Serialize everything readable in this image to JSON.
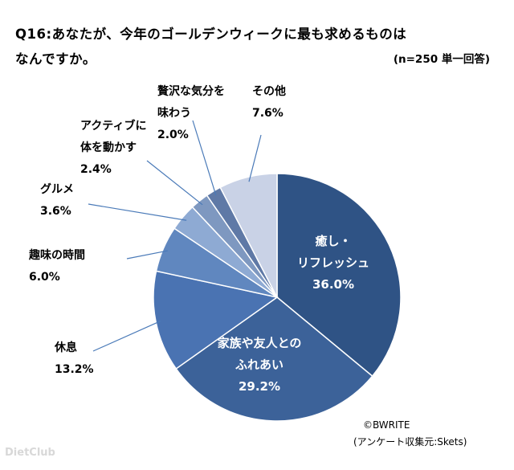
{
  "header": {
    "question_line1": "Q16:あなたが、今年のゴールデンウィークに最も求めるものは",
    "question_line2": "なんですか。",
    "sample": "(n=250 単一回答)"
  },
  "chart_data": {
    "type": "pie",
    "title": "Q16:あなたが、今年のゴールデンウィークに最も求めるものはなんですか。",
    "subtitle": "(n=250 単一回答)",
    "unit": "%",
    "slices": [
      {
        "label": "癒し・リフレッシュ",
        "lines": [
          "癒し・",
          "リフレッシュ"
        ],
        "value": 36.0,
        "value_text": "36.0%",
        "color": "#2f5385"
      },
      {
        "label": "家族や友人とのふれあい",
        "lines": [
          "家族や友人との",
          "ふれあい"
        ],
        "value": 29.2,
        "value_text": "29.2%",
        "color": "#3c6299"
      },
      {
        "label": "休息",
        "lines": [
          "休息"
        ],
        "value": 13.2,
        "value_text": "13.2%",
        "color": "#4a73b2"
      },
      {
        "label": "趣味の時間",
        "lines": [
          "趣味の時間"
        ],
        "value": 6.0,
        "value_text": "6.0%",
        "color": "#6087bf"
      },
      {
        "label": "グルメ",
        "lines": [
          "グルメ"
        ],
        "value": 3.6,
        "value_text": "3.6%",
        "color": "#8eaad3"
      },
      {
        "label": "アクティブに体を動かす",
        "lines": [
          "アクティブに",
          "体を動かす"
        ],
        "value": 2.4,
        "value_text": "2.4%",
        "color": "#7e98c0"
      },
      {
        "label": "贅沢な気分を味わう",
        "lines": [
          "贅沢な気分を",
          "味わう"
        ],
        "value": 2.0,
        "value_text": "2.0%",
        "color": "#5f79a6"
      },
      {
        "label": "その他",
        "lines": [
          "その他"
        ],
        "value": 7.6,
        "value_text": "7.6%",
        "color": "#c9d2e6"
      }
    ]
  },
  "credits": {
    "copyright": "©BWRITE",
    "source": "(アンケート収集元:Skets)"
  },
  "watermark": "DietClub"
}
